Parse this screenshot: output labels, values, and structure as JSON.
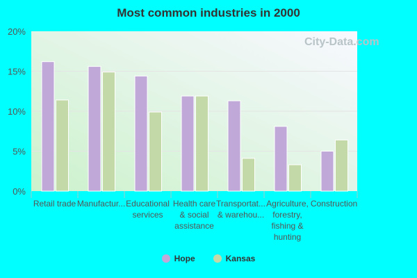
{
  "chart_data": {
    "type": "bar",
    "title": "Most common industries in 2000",
    "categories": [
      "Retail trade",
      "Manufactur...",
      "Educational services",
      "Health care & social assistance",
      "Transportat... & warehou...",
      "Agriculture, forestry, fishing & hunting",
      "Construction"
    ],
    "category_lines": [
      [
        "Retail trade"
      ],
      [
        "Manufactur..."
      ],
      [
        "Educational",
        "services"
      ],
      [
        "Health care",
        "& social",
        "assistance"
      ],
      [
        "Transportat...",
        "& warehou..."
      ],
      [
        "Agriculture,",
        "forestry,",
        "fishing &",
        "hunting"
      ],
      [
        "Construction"
      ]
    ],
    "series": [
      {
        "name": "Hope",
        "color": "#c0a8d8",
        "values": [
          16.2,
          15.6,
          14.4,
          11.9,
          11.3,
          8.1,
          5.0
        ]
      },
      {
        "name": "Kansas",
        "color": "#c4d9a8",
        "values": [
          11.4,
          14.9,
          9.9,
          11.9,
          4.1,
          3.3,
          6.4
        ]
      }
    ],
    "ylim": [
      0,
      20
    ],
    "yticks": [
      "0%",
      "5%",
      "10%",
      "15%",
      "20%"
    ],
    "grid": true,
    "legend_placement": "bottom",
    "watermark": "City-Data.com"
  }
}
